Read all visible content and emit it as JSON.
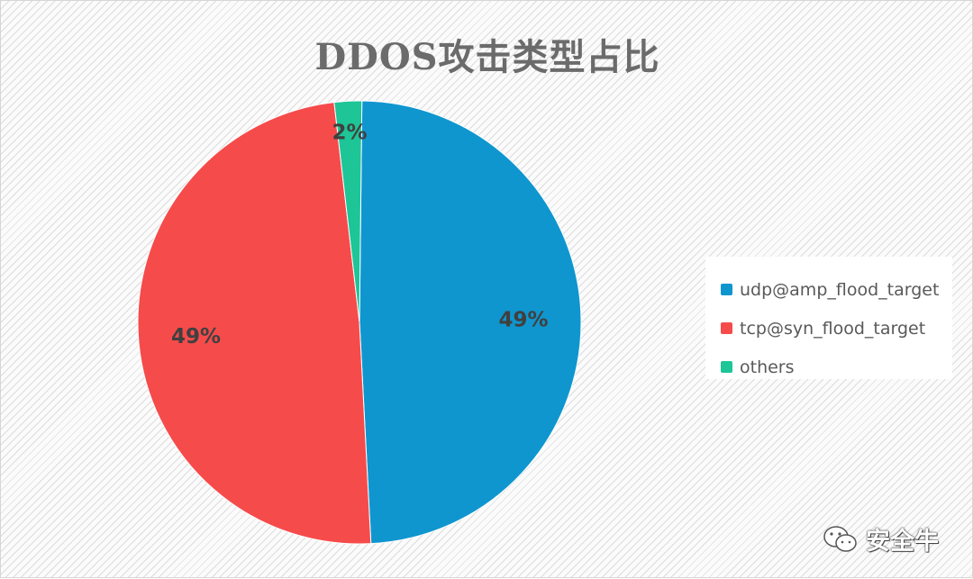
{
  "chart_data": {
    "type": "pie",
    "title": "DDOS攻击类型占比",
    "slices": [
      {
        "name": "udp@amp_flood_target",
        "value": 49,
        "label": "49%",
        "color": "#0f96cf"
      },
      {
        "name": "tcp@syn_flood_target",
        "value": 49,
        "label": "49%",
        "color": "#f64b4b"
      },
      {
        "name": "others",
        "value": 2,
        "label": "2%",
        "color": "#1dc597"
      }
    ],
    "legend_position": "right"
  },
  "watermark": {
    "text": "安全牛"
  }
}
